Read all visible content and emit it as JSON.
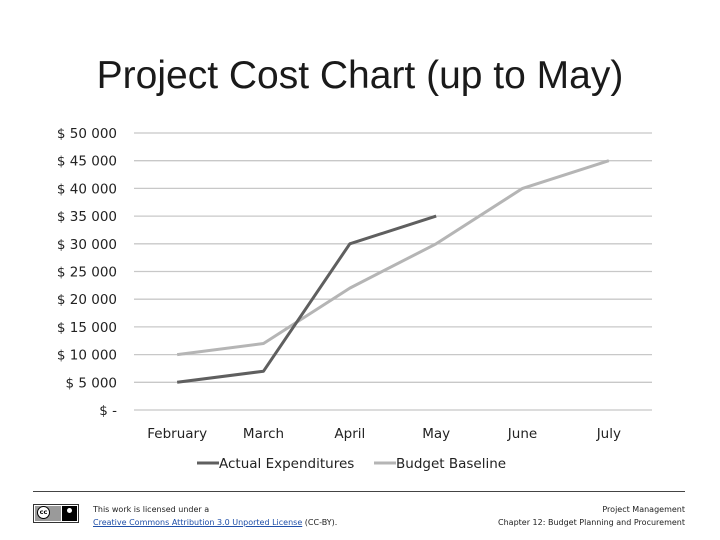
{
  "slide": {
    "title": "Project Cost Chart (up to May)"
  },
  "chart_data": {
    "type": "line",
    "title": "Project Cost Chart (up to May)",
    "xlabel": "",
    "ylabel": "",
    "categories": [
      "February",
      "March",
      "April",
      "May",
      "June",
      "July"
    ],
    "y_ticks": [
      0,
      5000,
      10000,
      15000,
      20000,
      25000,
      30000,
      35000,
      40000,
      45000,
      50000
    ],
    "y_tick_labels": [
      "$ -",
      "$ 5 000",
      "$ 10 000",
      "$ 15 000",
      "$ 20 000",
      "$ 25 000",
      "$ 30 000",
      "$ 35 000",
      "$ 40 000",
      "$ 45 000",
      "$ 50 000"
    ],
    "ylim": [
      0,
      50000
    ],
    "grid": true,
    "legend_position": "bottom",
    "series": [
      {
        "name": "Actual Expenditures",
        "color": "#5f5f5f",
        "values": [
          5000,
          7000,
          30000,
          35000,
          null,
          null
        ]
      },
      {
        "name": "Budget Baseline",
        "color": "#b5b5b5",
        "values": [
          10000,
          12000,
          22000,
          30000,
          40000,
          45000
        ]
      }
    ]
  },
  "footer": {
    "license_prefix": "This work is licensed under a",
    "license_link": "Creative Commons Attribution 3.0 Unported License",
    "license_suffix": "(CC-BY).",
    "course_title": "Project Management",
    "chapter": "Chapter 12: Budget Planning and Procurement",
    "badge_cc": "cc",
    "badge_icon": "cc-by-icon"
  }
}
